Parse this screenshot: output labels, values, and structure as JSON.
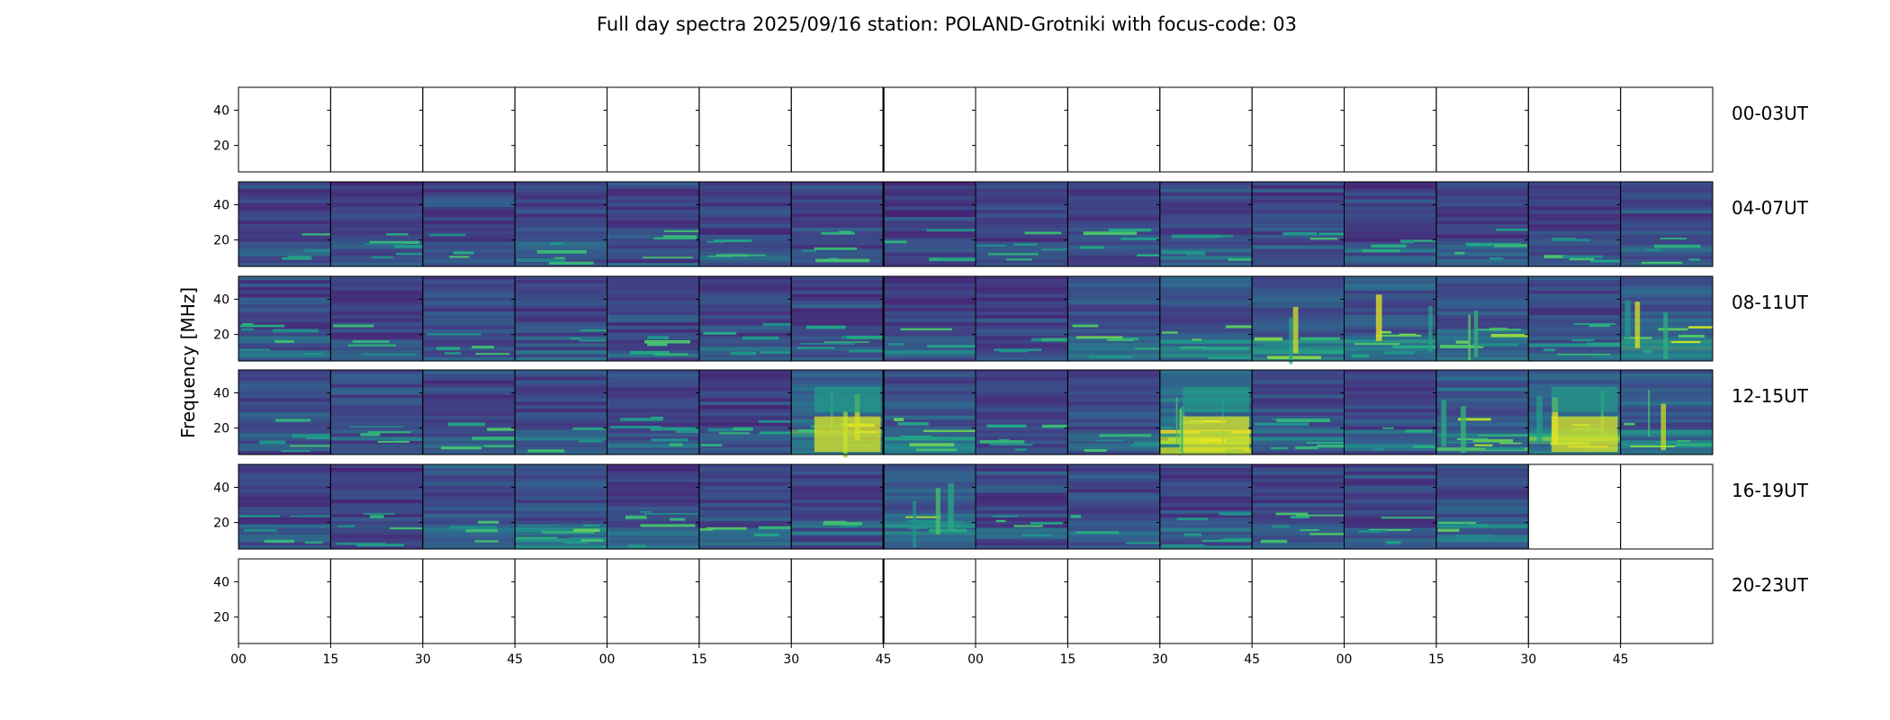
{
  "chart_data": {
    "type": "heatmap",
    "title": "Full day spectra 2025/09/16 station: POLAND-Grotniki with focus-code: 03",
    "ylabel": "Frequency [MHz]",
    "xlabel": "",
    "x_tick_labels": [
      "00",
      "15",
      "30",
      "45",
      "00",
      "15",
      "30",
      "45",
      "00",
      "15",
      "30",
      "45",
      "00",
      "15",
      "30",
      "45"
    ],
    "y_tick_labels": [
      "40",
      "20"
    ],
    "y_ticks_mhz": [
      40,
      20
    ],
    "ylim_mhz": [
      5,
      53
    ],
    "colormap": "viridis",
    "panels_per_row": 16,
    "panel_minutes": 15,
    "rows": [
      {
        "label": "00-03UT",
        "data_panels": []
      },
      {
        "label": "04-07UT",
        "data_panels": [
          0,
          1,
          2,
          3,
          4,
          5,
          6,
          7,
          8,
          9,
          10,
          11,
          12,
          13,
          14,
          15
        ]
      },
      {
        "label": "08-11UT",
        "data_panels": [
          0,
          1,
          2,
          3,
          4,
          5,
          6,
          7,
          8,
          9,
          10,
          11,
          12,
          13,
          14,
          15
        ]
      },
      {
        "label": "12-15UT",
        "data_panels": [
          0,
          1,
          2,
          3,
          4,
          5,
          6,
          7,
          8,
          9,
          10,
          11,
          12,
          13,
          14,
          15
        ]
      },
      {
        "label": "16-19UT",
        "data_panels": [
          0,
          1,
          2,
          3,
          4,
          5,
          6,
          7,
          8,
          9,
          10,
          11,
          12,
          13
        ]
      },
      {
        "label": "20-23UT",
        "data_panels": []
      }
    ],
    "intensity_levels": {
      "04-07UT": [
        0.18,
        0.16,
        0.16,
        0.16,
        0.16,
        0.15,
        0.16,
        0.14,
        0.15,
        0.15,
        0.22,
        0.16,
        0.16,
        0.17,
        0.16,
        0.22
      ],
      "08-11UT": [
        0.2,
        0.16,
        0.18,
        0.17,
        0.18,
        0.16,
        0.15,
        0.18,
        0.16,
        0.3,
        0.3,
        0.4,
        0.35,
        0.38,
        0.25,
        0.45
      ],
      "12-15UT": [
        0.22,
        0.18,
        0.16,
        0.18,
        0.2,
        0.17,
        0.55,
        0.3,
        0.2,
        0.2,
        0.7,
        0.25,
        0.22,
        0.4,
        0.55,
        0.35
      ],
      "16-19UT": [
        0.18,
        0.12,
        0.3,
        0.3,
        0.18,
        0.22,
        0.2,
        0.45,
        0.2,
        0.2,
        0.2,
        0.16,
        0.2,
        0.3
      ]
    }
  }
}
